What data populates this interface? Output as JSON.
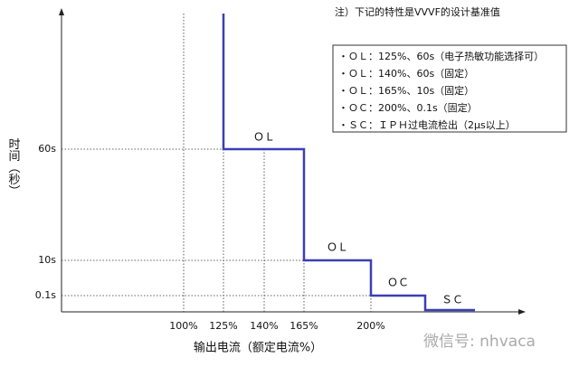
{
  "note": "注）下记的特性是VVVF的设计基准值",
  "legend_box": [
    "・ＯＬ：125%、60s（电子热敏功能选择可）",
    "・ＯＬ：140%、60s（固定）",
    "・ＯＬ：165%、10s（固定）",
    "・ＯＣ：200%、0.1s（固定）",
    "・ＳＣ：ＩＰＨ过电流检出（2μs以上）"
  ],
  "chart": {
    "x_label": "输出电流（额定电流%）",
    "y_label": "时间（秒）",
    "x_ticks": [
      "100%",
      "125%",
      "140%",
      "165%",
      "200%"
    ],
    "y_ticks": [
      "60s",
      "10s",
      "0.1s"
    ],
    "segment_labels": [
      "ＯＬ",
      "ＯＬ",
      "ＯＣ",
      "ＳＣ"
    ],
    "line_color": "#3a3fb5"
  },
  "watermark": "微信号: nhvaca"
}
